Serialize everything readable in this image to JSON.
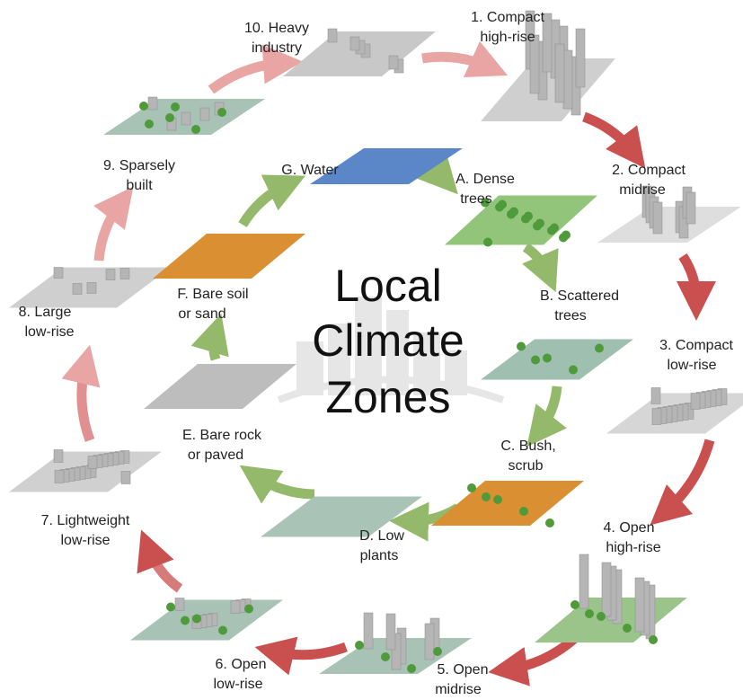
{
  "title": [
    "Local",
    "Climate",
    "Zones"
  ],
  "nodes": [
    {
      "label": [
        "1. Compact",
        "high-rise"
      ]
    },
    {
      "label": [
        "2. Compact",
        "midrise"
      ]
    },
    {
      "label": [
        "3. Compact",
        "low-rise"
      ]
    },
    {
      "label": [
        "4. Open",
        "high-rise"
      ]
    },
    {
      "label": [
        "5. Open",
        "midrise"
      ]
    },
    {
      "label": [
        "6. Open",
        "low-rise"
      ]
    },
    {
      "label": [
        "7. Lightweight",
        "low-rise"
      ]
    },
    {
      "label": [
        "8. Large",
        "low-rise"
      ]
    },
    {
      "label": [
        "9. Sparsely",
        "built"
      ]
    },
    {
      "label": [
        "10. Heavy",
        "industry"
      ]
    },
    {
      "label": [
        "A. Dense",
        "trees"
      ]
    },
    {
      "label": [
        "B. Scattered",
        "trees"
      ]
    },
    {
      "label": [
        "C. Bush,",
        "scrub"
      ]
    },
    {
      "label": [
        "D. Low",
        "plants"
      ]
    },
    {
      "label": [
        "E. Bare rock",
        "or paved"
      ]
    },
    {
      "label": [
        "F. Bare soil",
        "or sand"
      ]
    },
    {
      "label": [
        "G. Water"
      ]
    }
  ]
}
